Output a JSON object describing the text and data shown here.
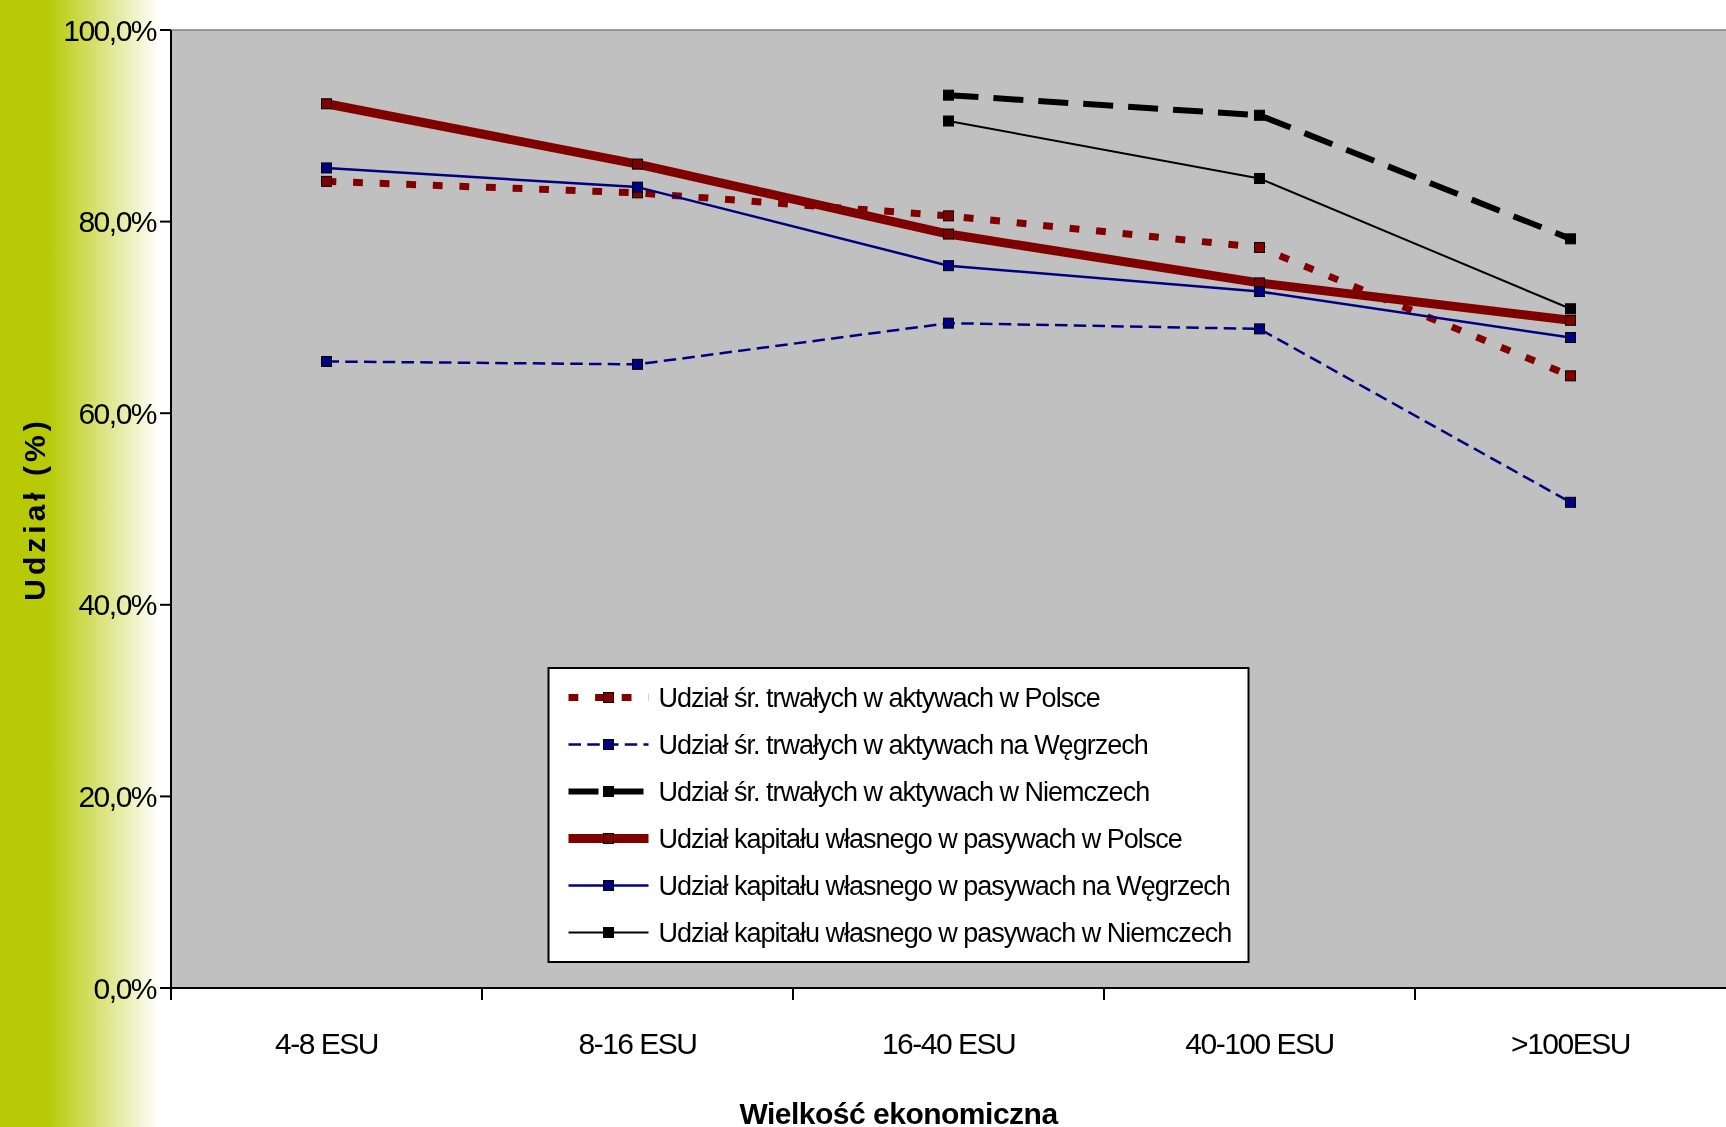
{
  "chart_data": {
    "type": "line",
    "xlabel": "Wielkość ekonomiczna",
    "ylabel": "Udział (%)",
    "categories": [
      "4-8 ESU",
      "8-16 ESU",
      "16-40 ESU",
      "40-100 ESU",
      ">100ESU"
    ],
    "ylim": [
      0,
      100
    ],
    "yticks": [
      {
        "value": 0,
        "label": "0,0%"
      },
      {
        "value": 20,
        "label": "20,0%"
      },
      {
        "value": 40,
        "label": "40,0%"
      },
      {
        "value": 60,
        "label": "60,0%"
      },
      {
        "value": 80,
        "label": "80,0%"
      },
      {
        "value": 100,
        "label": "100,0%"
      }
    ],
    "legend": "bottom",
    "marker": "square",
    "series": [
      {
        "name": "Udział śr. trwałych w aktywach w Polsce",
        "color": "#800000",
        "line_style": "dotted",
        "values": [
          84.2,
          83.0,
          80.6,
          77.3,
          63.9
        ]
      },
      {
        "name": "Udział śr. trwałych w aktywach na Węgrzech",
        "color": "#000080",
        "line_style": "dashed",
        "values": [
          65.4,
          65.1,
          69.4,
          68.8,
          50.7
        ]
      },
      {
        "name": "Udział śr. trwałych w aktywach w Niemczech",
        "color": "#000000",
        "line_style": "dashed",
        "values": [
          null,
          null,
          93.2,
          91.1,
          78.2
        ]
      },
      {
        "name": "Udział kapitału własnego w pasywach w Polsce",
        "color": "#800000",
        "line_style": "solid",
        "values": [
          92.3,
          86.0,
          78.7,
          73.6,
          69.7
        ]
      },
      {
        "name": "Udział kapitału własnego w pasywach na Węgrzech",
        "color": "#000080",
        "line_style": "solid",
        "values": [
          85.6,
          83.6,
          75.4,
          72.7,
          67.9
        ]
      },
      {
        "name": "Udział kapitału własnego w pasywach w Niemczech",
        "color": "#000000",
        "line_style": "solid",
        "values": [
          null,
          null,
          90.5,
          84.5,
          70.9
        ]
      }
    ]
  }
}
